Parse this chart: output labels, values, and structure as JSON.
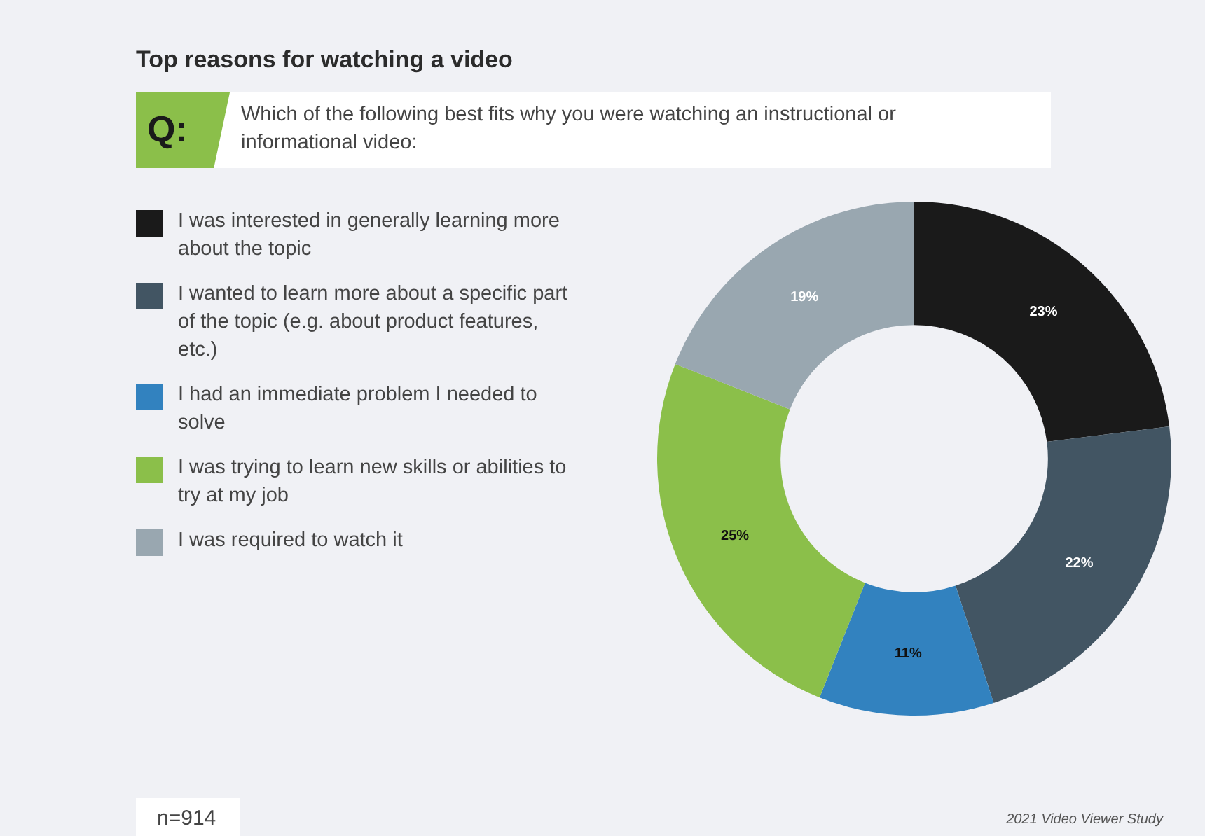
{
  "chart_data": {
    "type": "donut",
    "title": "Top reasons for watching a video",
    "subtitle": "Which of the following best fits why you were watching an instructional or informational video:",
    "categories": [
      "I was interested in generally learning more about the topic",
      "I wanted to learn more about a specific part of the topic (e.g. about product features, etc.)",
      "I had an immediate problem I needed to solve",
      "I was trying to learn new skills or abilities to try at my job",
      "I was required to watch it"
    ],
    "values": [
      23,
      22,
      11,
      25,
      19
    ],
    "colors": [
      "#1a1a1a",
      "#425563",
      "#3282bf",
      "#8bbf4a",
      "#99a7b0"
    ],
    "value_labels": [
      "23%",
      "22%",
      "11%",
      "25%",
      "19%"
    ],
    "legend": "left",
    "annotations": [
      "Q:",
      "n=914",
      "2021 Video Viewer Study"
    ]
  }
}
